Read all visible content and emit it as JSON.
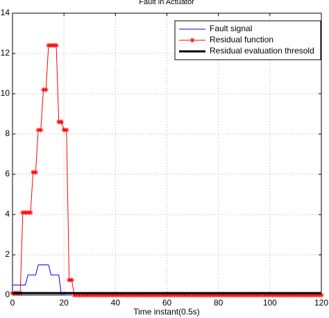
{
  "chart_data": {
    "type": "line",
    "title": "Fault in  Actuator",
    "x_label": "Time instant(0.5s)",
    "xlim": [
      0,
      120
    ],
    "xticks": [
      0,
      20,
      40,
      60,
      80,
      100,
      120
    ],
    "ylim": [
      0,
      14
    ],
    "yticks": [
      0,
      2,
      4,
      6,
      8,
      10,
      12,
      14
    ],
    "grid": true,
    "legend": "upper right",
    "series": [
      {
        "name": "Fault signal",
        "color": "#0000ff",
        "marker": "none",
        "width": 1,
        "x": [
          0,
          5,
          6,
          9,
          10,
          14,
          15,
          18,
          19,
          120
        ],
        "values": [
          0.5,
          0.5,
          1,
          1,
          1.5,
          1.5,
          1,
          1,
          0,
          0
        ]
      },
      {
        "name": "Residual function",
        "color": "#ff0000",
        "marker": "star",
        "width": 1,
        "x": [
          0,
          1,
          2,
          3,
          4,
          5,
          6,
          7,
          8,
          9,
          10,
          11,
          12,
          13,
          14,
          15,
          16,
          17,
          18,
          19,
          20,
          21,
          22,
          23,
          24,
          25,
          26,
          27,
          28,
          29,
          30,
          31,
          32,
          33,
          34,
          35,
          36,
          37,
          38,
          39,
          40,
          41,
          42,
          43,
          44,
          45,
          46,
          47,
          48,
          49,
          50,
          51,
          52,
          53,
          54,
          55,
          56,
          57,
          58,
          59,
          60,
          61,
          62,
          63,
          64,
          65,
          66,
          67,
          68,
          69,
          70,
          71,
          72,
          73,
          74,
          75,
          76,
          77,
          78,
          79,
          80,
          81,
          82,
          83,
          84,
          85,
          86,
          87,
          88,
          89,
          90,
          91,
          92,
          93,
          94,
          95,
          96,
          97,
          98,
          99,
          100,
          101,
          102,
          103,
          104,
          105,
          106,
          107,
          108,
          109,
          110,
          111,
          112,
          113,
          114,
          115,
          116,
          117,
          118,
          119,
          120
        ],
        "values": [
          0.1,
          0.1,
          0.1,
          0.1,
          4.1,
          4.1,
          4.1,
          4.1,
          6.1,
          6.1,
          8.2,
          8.2,
          10.2,
          10.2,
          12.4,
          12.4,
          12.4,
          12.4,
          8.6,
          8.6,
          8.2,
          8.2,
          0.75,
          0.75,
          0,
          0,
          0,
          0,
          0,
          0,
          0,
          0,
          0,
          0,
          0,
          0,
          0,
          0,
          0,
          0,
          0,
          0,
          0,
          0,
          0,
          0,
          0,
          0,
          0,
          0,
          0,
          0,
          0,
          0,
          0,
          0,
          0,
          0,
          0,
          0,
          0,
          0,
          0,
          0,
          0,
          0,
          0,
          0,
          0,
          0,
          0,
          0,
          0,
          0,
          0,
          0,
          0,
          0,
          0,
          0,
          0,
          0,
          0,
          0,
          0,
          0,
          0,
          0,
          0,
          0,
          0,
          0,
          0,
          0,
          0,
          0,
          0,
          0,
          0,
          0,
          0,
          0,
          0,
          0,
          0,
          0,
          0,
          0,
          0,
          0,
          0,
          0,
          0,
          0,
          0,
          0,
          0,
          0,
          0,
          0,
          0
        ]
      },
      {
        "name": "Residual evaluation thresold",
        "color": "#000000",
        "marker": "none",
        "width": 3,
        "x": [
          0,
          120
        ],
        "values": [
          0.1,
          0.1
        ]
      }
    ]
  }
}
